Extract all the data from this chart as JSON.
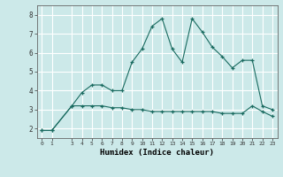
{
  "xlabel": "Humidex (Indice chaleur)",
  "background_color": "#cce9e9",
  "grid_color": "#ffffff",
  "line_color": "#1a6b60",
  "line1_x": [
    0,
    1,
    3,
    4,
    5,
    6,
    7,
    8,
    9,
    10,
    11,
    12,
    13,
    14,
    15,
    16,
    17,
    18,
    19,
    20,
    21,
    22,
    23
  ],
  "line1_y": [
    1.9,
    1.9,
    3.2,
    3.9,
    4.3,
    4.3,
    4.0,
    4.0,
    5.5,
    6.2,
    7.4,
    7.8,
    6.2,
    5.5,
    7.8,
    7.1,
    6.3,
    5.8,
    5.2,
    5.6,
    5.6,
    3.2,
    3.0
  ],
  "line2_x": [
    0,
    1,
    3,
    4,
    5,
    6,
    7,
    8,
    9,
    10,
    11,
    12,
    13,
    14,
    15,
    16,
    17,
    18,
    19,
    20,
    21,
    22,
    23
  ],
  "line2_y": [
    1.9,
    1.9,
    3.2,
    3.2,
    3.2,
    3.2,
    3.1,
    3.1,
    3.0,
    3.0,
    2.9,
    2.9,
    2.9,
    2.9,
    2.9,
    2.9,
    2.9,
    2.8,
    2.8,
    2.8,
    3.2,
    2.9,
    2.65
  ],
  "ylim": [
    1.5,
    8.5
  ],
  "yticks": [
    2,
    3,
    4,
    5,
    6,
    7,
    8
  ],
  "xticks": [
    0,
    1,
    3,
    4,
    5,
    6,
    7,
    8,
    9,
    10,
    11,
    12,
    13,
    14,
    15,
    16,
    17,
    18,
    19,
    20,
    21,
    22,
    23
  ],
  "marker": "+"
}
